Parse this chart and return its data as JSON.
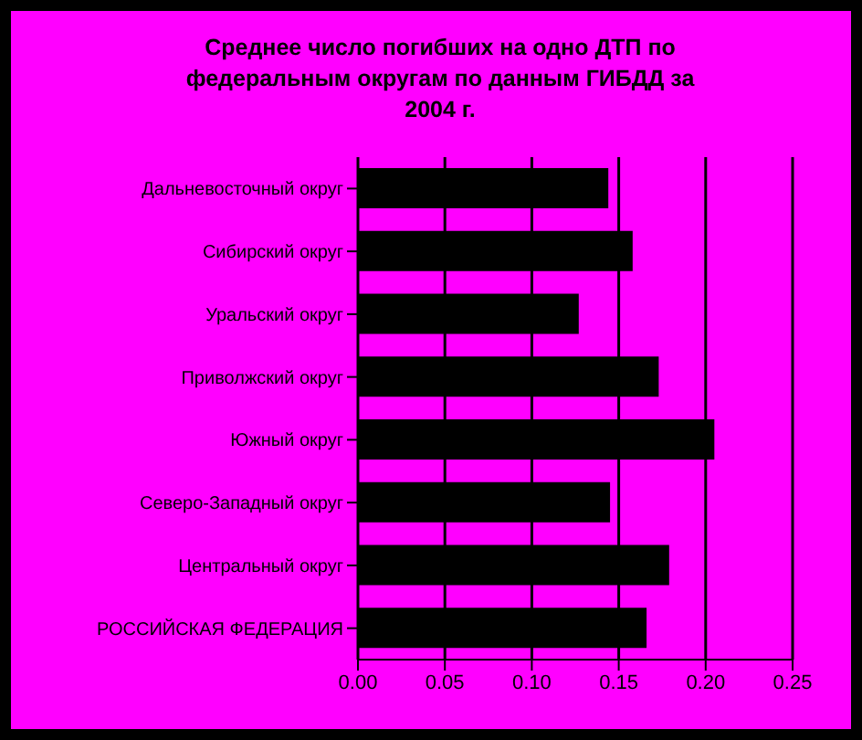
{
  "chart_data": {
    "type": "bar",
    "orientation": "horizontal",
    "title": "Среднее число погибших на одно ДТП по федеральным округам по данным ГИБДД за 2004 г.",
    "categories": [
      "Дальневосточный округ",
      "Сибирский округ",
      "Уральский округ",
      "Приволжский округ",
      "Южный округ",
      "Северо-Западный округ",
      "Центральный округ",
      "РОССИЙСКАЯ ФЕДЕРАЦИЯ"
    ],
    "values": [
      0.144,
      0.158,
      0.127,
      0.173,
      0.205,
      0.145,
      0.179,
      0.166
    ],
    "color": "#000000",
    "xlim": [
      0,
      0.25
    ],
    "xticks": [
      {
        "value": 0,
        "label": "0.00"
      },
      {
        "value": 0.05,
        "label": "0.05"
      },
      {
        "value": 0.1,
        "label": "0.10"
      },
      {
        "value": 0.15,
        "label": "0.15"
      },
      {
        "value": 0.2,
        "label": "0.20"
      },
      {
        "value": 0.25,
        "label": "0.25"
      }
    ],
    "grid": "x"
  }
}
